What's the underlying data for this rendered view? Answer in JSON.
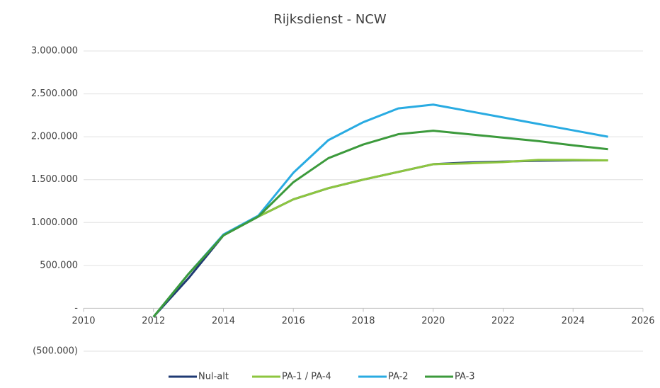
{
  "chart_data": {
    "type": "line",
    "title": "Rijksdienst - NCW",
    "x": [
      2012,
      2013,
      2014,
      2015,
      2016,
      2017,
      2018,
      2019,
      2020,
      2021,
      2022,
      2023,
      2024,
      2025
    ],
    "series": [
      {
        "name": "Nul-alt",
        "color": "#1f3a73",
        "values": [
          -100000,
          350000,
          850000,
          1070000,
          1270000,
          1400000,
          1500000,
          1590000,
          1680000,
          1700000,
          1710000,
          1720000,
          1725000,
          1725000
        ]
      },
      {
        "name": "PA-1 / PA-4",
        "color": "#8dc63f",
        "values": [
          -100000,
          400000,
          850000,
          1070000,
          1270000,
          1400000,
          1500000,
          1590000,
          1680000,
          1690000,
          1705000,
          1730000,
          1730000,
          1725000
        ]
      },
      {
        "name": "PA-2",
        "color": "#29abe2",
        "values": [
          -100000,
          400000,
          860000,
          1080000,
          1580000,
          1960000,
          2170000,
          2330000,
          2375000,
          2300000,
          2225000,
          2150000,
          2075000,
          2000000
        ]
      },
      {
        "name": "PA-3",
        "color": "#3c9a3c",
        "values": [
          -100000,
          400000,
          850000,
          1070000,
          1470000,
          1750000,
          1910000,
          2030000,
          2070000,
          2030000,
          1990000,
          1950000,
          1900000,
          1855000
        ]
      }
    ],
    "xlim": [
      2010,
      2026
    ],
    "xticks": [
      2010,
      2012,
      2014,
      2016,
      2018,
      2020,
      2022,
      2024,
      2026
    ],
    "ylim": [
      -500000,
      3000000
    ],
    "yticks": [
      {
        "value": -500000,
        "label": "(500.000)"
      },
      {
        "value": 0,
        "label": "-"
      },
      {
        "value": 500000,
        "label": "500.000"
      },
      {
        "value": 1000000,
        "label": "1.000.000"
      },
      {
        "value": 1500000,
        "label": "1.500.000"
      },
      {
        "value": 2000000,
        "label": "2.000.000"
      },
      {
        "value": 2500000,
        "label": "2.500.000"
      },
      {
        "value": 3000000,
        "label": "3.000.000"
      }
    ],
    "grid": true,
    "legend": "bottom"
  }
}
